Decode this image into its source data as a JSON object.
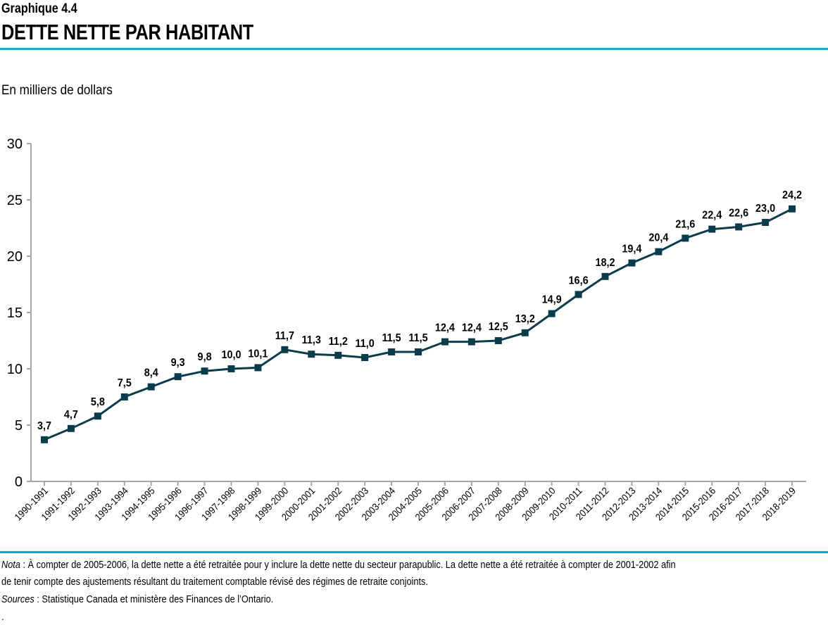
{
  "header": {
    "kicker": "Graphique 4.4",
    "title": "DETTE NETTE PAR HABITANT"
  },
  "unit_label": "En milliers de dollars",
  "colors": {
    "accent": "#1aa6cf",
    "line": "#0b3c4c",
    "axis": "#a6a6a6"
  },
  "footer": {
    "nota_label": "Nota",
    "nota_text": " : À compter de 2005-2006, la dette nette a été retraitée pour y inclure la dette nette du secteur parapublic. La dette nette a été retraitée à compter de 2001-2002 afin",
    "nota_text2": "de tenir compte des ajustements résultant du traitement comptable révisé des régimes de retraite conjoints.",
    "sources_label": "Sources",
    "sources_text": " : Statistique  Canada et ministère des Finances de l’Ontario.",
    "trailing": "."
  },
  "chart_data": {
    "type": "line",
    "title": "DETTE NETTE PAR HABITANT",
    "ylabel": "En milliers de dollars",
    "ylim": [
      0,
      30
    ],
    "yticks": [
      0,
      5,
      10,
      15,
      20,
      25,
      30
    ],
    "grid": false,
    "categories": [
      "1990-1991",
      "1991-1992",
      "1992-1993",
      "1993-1994",
      "1994-1995",
      "1995-1996",
      "1996-1997",
      "1997-1998",
      "1998-1999",
      "1999-2000",
      "2000-2001",
      "2001-2002",
      "2002-2003",
      "2003-2004",
      "2004-2005",
      "2005-2006",
      "2006-2007",
      "2007-2008",
      "2008-2009",
      "2009-2010",
      "2010-2011",
      "2011-2012",
      "2012-2013",
      "2013-2014",
      "2014-2015",
      "2015-2016",
      "2016-2017",
      "2017-2018",
      "2018-2019"
    ],
    "values": [
      3.7,
      4.7,
      5.8,
      7.5,
      8.4,
      9.3,
      9.8,
      10.0,
      10.1,
      11.7,
      11.3,
      11.2,
      11.0,
      11.5,
      11.5,
      12.4,
      12.4,
      12.5,
      13.2,
      14.9,
      16.6,
      18.2,
      19.4,
      20.4,
      21.6,
      22.4,
      22.6,
      23.0,
      24.2
    ],
    "data_labels": [
      "3,7",
      "4,7",
      "5,8",
      "7,5",
      "8,4",
      "9,3",
      "9,8",
      "10,0",
      "10,1",
      "11,7",
      "11,3",
      "11,2",
      "11,0",
      "11,5",
      "11,5",
      "12,4",
      "12,4",
      "12,5",
      "13,2",
      "14,9",
      "16,6",
      "18,2",
      "19,4",
      "20,4",
      "21,6",
      "22,4",
      "22,6",
      "23,0",
      "24,2"
    ],
    "marker": "square"
  }
}
